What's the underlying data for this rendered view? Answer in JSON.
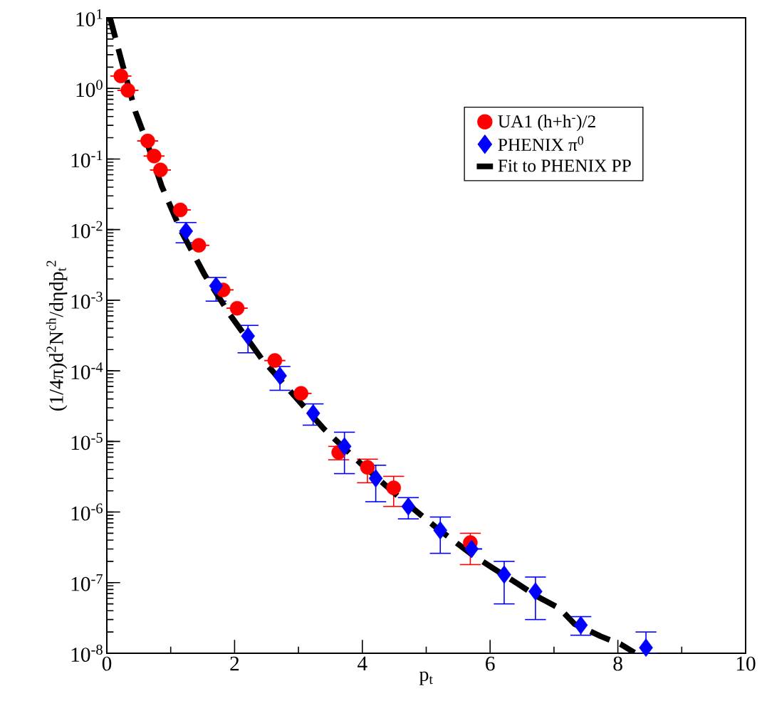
{
  "chart_data": {
    "type": "scatter",
    "xlabel": "p$_{t}$",
    "ylabel": "(1/4π)d$^{2}$N$^{ch}$/dηdp$_{t}$$^{2}$",
    "log": "y",
    "xlim": [
      0,
      10
    ],
    "ylim": [
      1e-08,
      10
    ],
    "xticks": [
      0,
      2,
      4,
      6,
      8,
      10
    ],
    "yticks": [
      {
        "value": 1e-08,
        "label": "10$^{-8}$"
      },
      {
        "value": 1e-07,
        "label": "10$^{-7}$"
      },
      {
        "value": 1e-06,
        "label": "10$^{-6}$"
      },
      {
        "value": 1e-05,
        "label": "10$^{-5}$"
      },
      {
        "value": 0.0001,
        "label": "10$^{-4}$"
      },
      {
        "value": 0.001,
        "label": "10$^{-3}$"
      },
      {
        "value": 0.01,
        "label": "10$^{-2}$"
      },
      {
        "value": 0.1,
        "label": "10$^{-1}$"
      },
      {
        "value": 1,
        "label": "10$^{0}$"
      },
      {
        "value": 10,
        "label": "10$^{1}$"
      }
    ],
    "legend": "top right",
    "grid": false,
    "series": [
      {
        "name": "UA1 (h+h$^{-}$)/2",
        "marker": "circle",
        "color": "#ff0000",
        "x": [
          0.22,
          0.33,
          0.64,
          0.74,
          0.84,
          1.15,
          1.44,
          1.82,
          2.04,
          2.63,
          3.04,
          3.63,
          4.08,
          4.49,
          5.69
        ],
        "values": [
          1.5,
          0.94,
          0.18,
          0.11,
          0.07,
          0.019,
          0.006,
          0.0014,
          0.00077,
          0.00014,
          4.8e-05,
          7e-06,
          4.3e-06,
          2.2e-06,
          3.7e-07
        ],
        "errors": [
          null,
          null,
          null,
          null,
          null,
          null,
          null,
          null,
          null,
          null,
          null,
          [
            5.5e-06,
            8.5e-06
          ],
          [
            2.6e-06,
            5.6e-06
          ],
          [
            1.2e-06,
            3.2e-06
          ],
          [
            1.8e-07,
            5e-07
          ]
        ]
      },
      {
        "name": "PHENIX π$^{0}$",
        "marker": "diamond",
        "color": "#0000ff",
        "x": [
          1.24,
          1.71,
          2.21,
          2.71,
          3.23,
          3.72,
          4.21,
          4.72,
          5.22,
          5.71,
          6.22,
          6.71,
          7.42,
          8.44
        ],
        "values": [
          0.0095,
          0.0016,
          0.00031,
          8.5e-05,
          2.5e-05,
          8.5e-06,
          3e-06,
          1.2e-06,
          5.5e-07,
          3e-07,
          1.3e-07,
          7.5e-08,
          2.5e-08,
          1.2e-08
        ],
        "errors": [
          [
            0.0065,
            0.0126
          ],
          [
            0.00097,
            0.0021
          ],
          [
            0.00018,
            0.00044
          ],
          [
            5.3e-05,
            0.000115
          ],
          [
            1.7e-05,
            3.4e-05
          ],
          [
            3.5e-06,
            1.35e-05
          ],
          [
            1.4e-06,
            4.6e-06
          ],
          [
            8e-07,
            1.6e-06
          ],
          [
            2.6e-07,
            8.5e-07
          ],
          null,
          [
            5e-08,
            2e-07
          ],
          [
            3e-08,
            1.2e-07
          ],
          [
            1.8e-08,
            3.3e-08
          ],
          [
            1e-08,
            2e-08
          ]
        ]
      },
      {
        "name": "Fit to PHENIX PP",
        "type": "line",
        "line_style": "dashed",
        "color": "#000000",
        "x": [
          0.05,
          0.25,
          0.45,
          0.62,
          0.86,
          1.17,
          1.53,
          1.93,
          2.42,
          2.9,
          3.4,
          3.96,
          4.55,
          5.16,
          5.69,
          6.07,
          6.42,
          6.72,
          7.09,
          7.32,
          7.73,
          8.04,
          8.26
        ],
        "values": [
          10,
          2.1,
          0.46,
          0.18,
          0.041,
          0.0093,
          0.0023,
          0.00062,
          0.00015,
          4.8e-05,
          1.5e-05,
          5e-06,
          1.7e-06,
          6e-07,
          2.6e-07,
          1.55e-07,
          9.8e-08,
          6.5e-08,
          4.3e-08,
          2.6e-08,
          1.74e-08,
          1.35e-08,
          1.02e-08
        ]
      }
    ]
  }
}
